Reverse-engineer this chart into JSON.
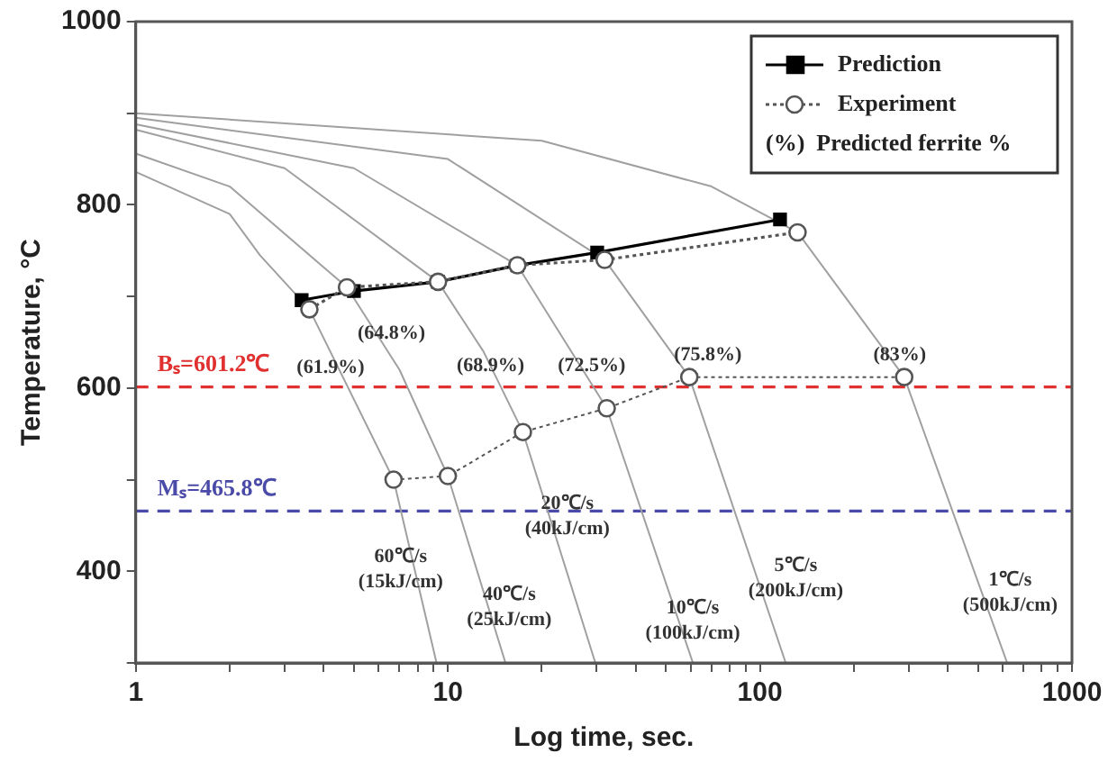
{
  "chart_data": {
    "type": "line",
    "xlabel": "Log time, sec.",
    "ylabel": "Temperature, °C",
    "log": "x",
    "grid": false,
    "legend": "top right",
    "xlim": [
      1,
      1000
    ],
    "xticks": [
      1,
      {
        "value": 2,
        "label": null
      },
      {
        "value": 3,
        "label": null
      },
      {
        "value": 4,
        "label": null
      },
      {
        "value": 5,
        "label": null
      },
      {
        "value": 6,
        "label": null
      },
      {
        "value": 7,
        "label": null
      },
      {
        "value": 8,
        "label": null
      },
      {
        "value": 9,
        "label": null
      },
      10,
      {
        "value": 20,
        "label": null
      },
      {
        "value": 30,
        "label": null
      },
      {
        "value": 40,
        "label": null
      },
      {
        "value": 50,
        "label": null
      },
      {
        "value": 60,
        "label": null
      },
      {
        "value": 70,
        "label": null
      },
      {
        "value": 80,
        "label": null
      },
      {
        "value": 90,
        "label": null
      },
      100,
      {
        "value": 200,
        "label": null
      },
      {
        "value": 300,
        "label": null
      },
      {
        "value": 400,
        "label": null
      },
      {
        "value": 500,
        "label": null
      },
      {
        "value": 600,
        "label": null
      },
      {
        "value": 700,
        "label": null
      },
      {
        "value": 800,
        "label": null
      },
      {
        "value": 900,
        "label": null
      },
      1000
    ],
    "ylim": [
      300,
      1000
    ],
    "yticks": [
      {
        "value": 300,
        "label": null
      },
      400,
      {
        "value": 500,
        "label": null
      },
      600,
      {
        "value": 700,
        "label": null
      },
      800,
      {
        "value": 900,
        "label": null
      },
      1000
    ],
    "series": [
      {
        "type": "line",
        "color": "#a0a0a0",
        "marker": "none",
        "x": [
          1,
          2,
          2.5,
          3.6,
          6.7,
          9.2
        ],
        "values": [
          836,
          790,
          745,
          686,
          500,
          300
        ]
      },
      {
        "type": "line",
        "color": "#a0a0a0",
        "marker": "none",
        "x": [
          1,
          2,
          4.75,
          7,
          10,
          15.3
        ],
        "values": [
          856,
          820,
          710,
          620,
          504,
          300
        ]
      },
      {
        "type": "line",
        "color": "#a0a0a0",
        "marker": "none",
        "x": [
          1,
          3,
          9.3,
          13,
          17.4,
          29.7
        ],
        "values": [
          882,
          840,
          716,
          640,
          552,
          300
        ]
      },
      {
        "type": "line",
        "color": "#a0a0a0",
        "marker": "none",
        "x": [
          1,
          5,
          16.7,
          32.3,
          61
        ],
        "values": [
          888,
          840,
          734,
          578,
          300
        ]
      },
      {
        "type": "line",
        "color": "#a0a0a0",
        "marker": "none",
        "x": [
          1,
          10,
          31.8,
          59.4,
          121
        ],
        "values": [
          895,
          850,
          740,
          612,
          300
        ]
      },
      {
        "type": "line",
        "color": "#a0a0a0",
        "marker": "none",
        "x": [
          1,
          20,
          70,
          132,
          290,
          620
        ],
        "values": [
          900,
          870,
          820,
          770,
          612,
          300
        ]
      },
      {
        "name": "Prediction",
        "type": "line",
        "color": "#000000",
        "marker": "square",
        "line_style": "solid",
        "x": [
          3.4,
          5.0,
          9.3,
          16.7,
          30.1,
          116
        ],
        "values": [
          696,
          706,
          716,
          734,
          748,
          784
        ]
      },
      {
        "name": "Experiment",
        "type": "line",
        "color": "#555555",
        "marker": "circle",
        "line_style": "dotted",
        "x": [
          3.6,
          4.75,
          9.3,
          16.7,
          31.8,
          132
        ],
        "values": [
          686,
          710,
          716,
          734,
          740,
          770
        ]
      },
      {
        "type": "line",
        "color": "#555555",
        "marker": "circle",
        "line_style": "dotted",
        "x": [
          6.7,
          10,
          17.4,
          32.3,
          59.4,
          290
        ],
        "values": [
          500,
          504,
          552,
          578,
          612,
          612
        ]
      }
    ],
    "ref_lines": [
      {
        "axis": "y",
        "value": 601.2,
        "label": "Bₛ=601.2℃",
        "color": "#e03030",
        "line_style": "dashed"
      },
      {
        "axis": "y",
        "value": 465.8,
        "label": "Mₛ=465.8℃",
        "color": "#4a4aa8",
        "line_style": "dashed"
      }
    ],
    "annotations": [
      "(%)  Predicted ferrite %",
      "(61.9%)",
      "(64.8%)",
      "(68.9%)",
      "(72.5%)",
      "(75.8%)",
      "(83%)",
      "60℃/s\n(15kJ/cm)",
      "40℃/s\n(25kJ/cm)",
      "20℃/s\n(40kJ/cm)",
      "10℃/s\n(100kJ/cm)",
      "5℃/s\n(200kJ/cm)",
      "1℃/s\n(500kJ/cm)"
    ]
  }
}
